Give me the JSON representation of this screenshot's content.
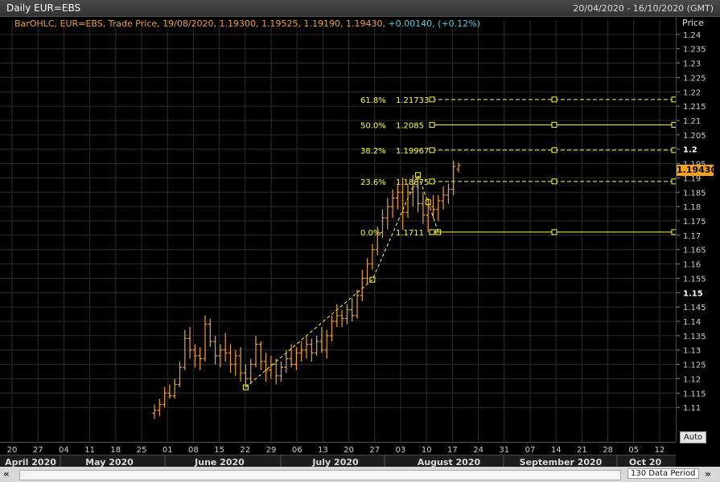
{
  "header": {
    "title": "Daily EUR=EBS",
    "date_range": "20/04/2020 - 16/10/2020 (GMT)"
  },
  "ohlc_info": {
    "text": "BarOHLC, EUR=EBS, Trade Price, 19/08/2020, 1.19300, 1.19525, 1.19190, 1.19430,",
    "change": " +0.00140, (+0.12%)"
  },
  "price_axis": {
    "label": "Price",
    "last_price": "1.19430"
  },
  "auto_label": "Auto",
  "period_label": "130 Data Period",
  "colors": {
    "bar": "#f0a030",
    "fib": "#ffff33",
    "text": "#cccccc",
    "grid": "#2e2e2e"
  },
  "chart_data": {
    "type": "ohlc",
    "title": "Daily EUR=EBS",
    "ylabel": "Price",
    "ylim": [
      1.105,
      1.245
    ],
    "y_ticks": [
      "1.11",
      "1.115",
      "1.12",
      "1.125",
      "1.13",
      "1.135",
      "1.14",
      "1.145",
      "1.15",
      "1.155",
      "1.16",
      "1.165",
      "1.17",
      "1.175",
      "1.18",
      "1.185",
      "1.19",
      "1.195",
      "1.2",
      "1.205",
      "1.21",
      "1.215",
      "1.22",
      "1.225",
      "1.23",
      "1.235",
      "1.24"
    ],
    "x_ticks": [
      "20",
      "27",
      "04",
      "11",
      "18",
      "25",
      "01",
      "08",
      "15",
      "22",
      "29",
      "06",
      "13",
      "20",
      "27",
      "03",
      "10",
      "17",
      "24",
      "31",
      "07",
      "14",
      "21",
      "28",
      "05",
      "12"
    ],
    "months": [
      "April 2020",
      "May 2020",
      "June 2020",
      "July 2020",
      "August 2020",
      "September 2020",
      "Oct 20"
    ],
    "series": [
      {
        "values": [
          [
            1.108,
            1.111,
            1.106,
            1.109
          ],
          [
            1.109,
            1.113,
            1.107,
            1.111
          ],
          [
            1.111,
            1.117,
            1.11,
            1.115
          ],
          [
            1.115,
            1.118,
            1.113,
            1.114
          ],
          [
            1.114,
            1.12,
            1.113,
            1.118
          ],
          [
            1.118,
            1.126,
            1.117,
            1.124
          ],
          [
            1.124,
            1.137,
            1.123,
            1.134
          ],
          [
            1.134,
            1.138,
            1.127,
            1.13
          ],
          [
            1.13,
            1.132,
            1.124,
            1.128
          ],
          [
            1.128,
            1.131,
            1.123,
            1.127
          ],
          [
            1.127,
            1.142,
            1.126,
            1.139
          ],
          [
            1.139,
            1.141,
            1.131,
            1.133
          ],
          [
            1.133,
            1.135,
            1.125,
            1.128
          ],
          [
            1.128,
            1.132,
            1.124,
            1.13
          ],
          [
            1.13,
            1.136,
            1.126,
            1.129
          ],
          [
            1.129,
            1.132,
            1.122,
            1.125
          ],
          [
            1.125,
            1.13,
            1.121,
            1.128
          ],
          [
            1.128,
            1.131,
            1.119,
            1.122
          ],
          [
            1.122,
            1.125,
            1.117,
            1.12
          ],
          [
            1.12,
            1.127,
            1.118,
            1.125
          ],
          [
            1.125,
            1.135,
            1.124,
            1.132
          ],
          [
            1.132,
            1.133,
            1.123,
            1.126
          ],
          [
            1.126,
            1.129,
            1.119,
            1.123
          ],
          [
            1.123,
            1.128,
            1.12,
            1.125
          ],
          [
            1.125,
            1.127,
            1.118,
            1.121
          ],
          [
            1.121,
            1.126,
            1.119,
            1.124
          ],
          [
            1.124,
            1.13,
            1.122,
            1.127
          ],
          [
            1.127,
            1.132,
            1.124,
            1.125
          ],
          [
            1.125,
            1.131,
            1.123,
            1.129
          ],
          [
            1.129,
            1.133,
            1.126,
            1.13
          ],
          [
            1.13,
            1.135,
            1.127,
            1.132
          ],
          [
            1.132,
            1.134,
            1.126,
            1.129
          ],
          [
            1.129,
            1.135,
            1.128,
            1.133
          ],
          [
            1.133,
            1.138,
            1.129,
            1.13
          ],
          [
            1.13,
            1.137,
            1.127,
            1.135
          ],
          [
            1.135,
            1.142,
            1.133,
            1.14
          ],
          [
            1.14,
            1.146,
            1.138,
            1.142
          ],
          [
            1.142,
            1.144,
            1.138,
            1.141
          ],
          [
            1.141,
            1.146,
            1.139,
            1.144
          ],
          [
            1.144,
            1.148,
            1.14,
            1.142
          ],
          [
            1.142,
            1.151,
            1.141,
            1.149
          ],
          [
            1.149,
            1.158,
            1.147,
            1.155
          ],
          [
            1.155,
            1.162,
            1.153,
            1.16
          ],
          [
            1.16,
            1.167,
            1.158,
            1.165
          ],
          [
            1.165,
            1.173,
            1.163,
            1.171
          ],
          [
            1.171,
            1.179,
            1.169,
            1.176
          ],
          [
            1.176,
            1.183,
            1.172,
            1.18
          ],
          [
            1.18,
            1.186,
            1.176,
            1.183
          ],
          [
            1.183,
            1.188,
            1.179,
            1.185
          ],
          [
            1.185,
            1.19,
            1.172,
            1.178
          ],
          [
            1.178,
            1.188,
            1.176,
            1.185
          ],
          [
            1.185,
            1.191,
            1.18,
            1.187
          ],
          [
            1.187,
            1.19,
            1.178,
            1.181
          ],
          [
            1.181,
            1.185,
            1.174,
            1.177
          ],
          [
            1.177,
            1.183,
            1.1711,
            1.18
          ],
          [
            1.18,
            1.184,
            1.176,
            1.179
          ],
          [
            1.179,
            1.184,
            1.175,
            1.182
          ],
          [
            1.182,
            1.187,
            1.179,
            1.184
          ],
          [
            1.184,
            1.188,
            1.181,
            1.186
          ],
          [
            1.186,
            1.196,
            1.184,
            1.194
          ],
          [
            1.193,
            1.1953,
            1.1919,
            1.1943
          ]
        ]
      }
    ],
    "fibonacci": {
      "levels": [
        {
          "pct": "61.8%",
          "value": "1.21733",
          "price": 1.21733
        },
        {
          "pct": "50.0%",
          "value": "1.2085",
          "price": 1.2085
        },
        {
          "pct": "38.2%",
          "value": "1.19967",
          "price": 1.19967
        },
        {
          "pct": "23.6%",
          "value": "1.18875",
          "price": 1.18875
        },
        {
          "pct": "0.0%",
          "value": "1.1711",
          "price": 1.1711
        }
      ],
      "trend": [
        {
          "idx": 18,
          "price": 1.117
        },
        {
          "idx": 43,
          "price": 1.1545
        },
        {
          "idx": 52,
          "price": 1.191
        },
        {
          "idx": 54,
          "price": 1.1815
        },
        {
          "idx": 56,
          "price": 1.1711
        }
      ]
    }
  }
}
